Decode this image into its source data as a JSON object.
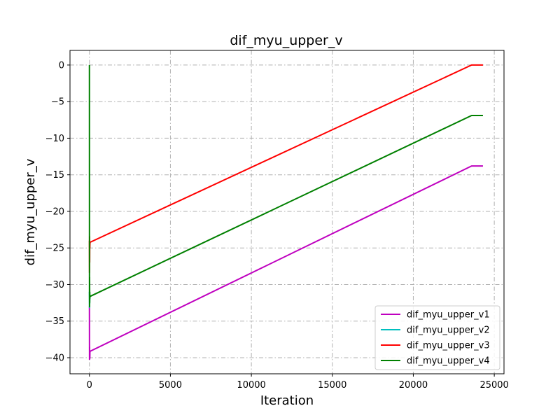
{
  "chart_data": {
    "type": "line",
    "title": "dif_myu_upper_v",
    "xlabel": "Iteration",
    "ylabel": "dif_myu_upper_v",
    "xlim": [
      -1200,
      25600
    ],
    "ylim": [
      -42.2,
      2.0
    ],
    "xticks": [
      0,
      5000,
      10000,
      15000,
      20000,
      25000
    ],
    "yticks": [
      0,
      -5,
      -10,
      -15,
      -20,
      -25,
      -30,
      -35,
      -40
    ],
    "xtick_labels": [
      "0",
      "5000",
      "10000",
      "15000",
      "20000",
      "25000"
    ],
    "ytick_labels": [
      "0",
      "−5",
      "−10",
      "−15",
      "−20",
      "−25",
      "−30",
      "−35",
      "−40"
    ],
    "grid": true,
    "legend_position": "lower-right",
    "series": [
      {
        "name": "dif_myu_upper_v1",
        "color": "#bf00bf",
        "x": [
          0,
          5,
          10,
          15,
          20,
          25,
          30,
          40,
          50,
          60,
          23600,
          24300
        ],
        "y": [
          -33.0,
          -40.3,
          -38.5,
          -40.2,
          -39.0,
          -40.1,
          -39.3,
          -39.1,
          -39.1,
          -39.1,
          -13.8,
          -13.8
        ]
      },
      {
        "name": "dif_myu_upper_v2",
        "color": "#00bfbf",
        "x": [
          0,
          5,
          10,
          15,
          20,
          25
        ],
        "y": [
          -31.0,
          -33.2,
          -30.0,
          -32.6,
          -31.5,
          -32.0
        ]
      },
      {
        "name": "dif_myu_upper_v3",
        "color": "#ff0000",
        "x": [
          0,
          5,
          10,
          15,
          20,
          25,
          30,
          40,
          50,
          60,
          23600,
          24300
        ],
        "y": [
          -24.0,
          -28.4,
          -23.4,
          -27.0,
          -24.2,
          -25.0,
          -24.5,
          -24.2,
          -24.2,
          -24.2,
          0.0,
          0.0
        ]
      },
      {
        "name": "dif_myu_upper_v4",
        "color": "#008000",
        "x": [
          0,
          3,
          6,
          10,
          15,
          20,
          25,
          30,
          40,
          50,
          60,
          23600,
          24300
        ],
        "y": [
          0.0,
          -31.0,
          -33.1,
          -29.0,
          -32.5,
          -31.0,
          -31.9,
          -31.6,
          -31.6,
          -31.6,
          -31.6,
          -6.9,
          -6.9
        ]
      }
    ]
  }
}
